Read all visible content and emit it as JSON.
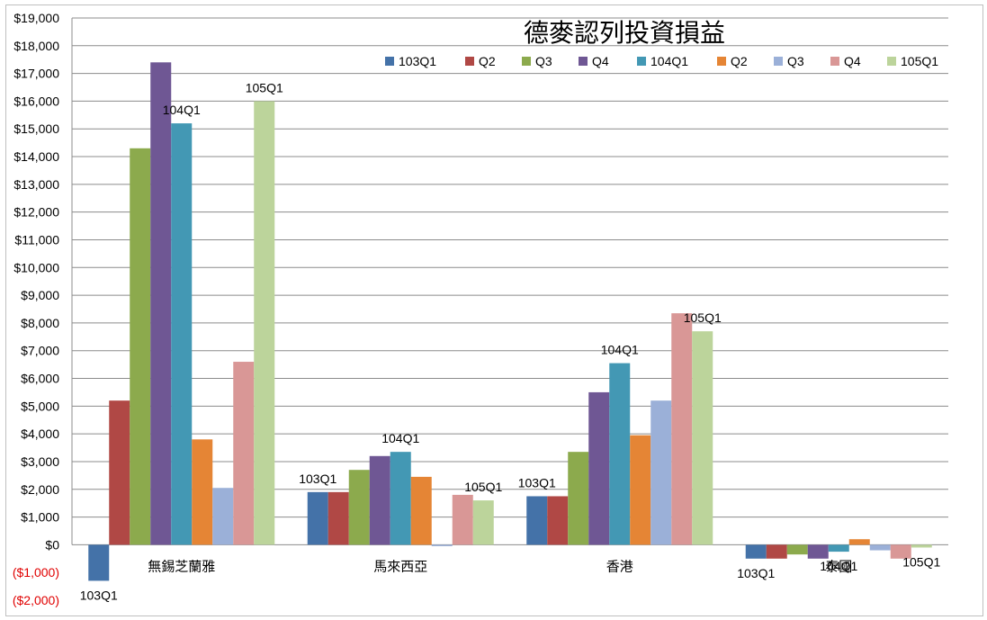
{
  "chart_data": {
    "type": "bar",
    "title": "德麥認列投資損益",
    "xlabel": "",
    "ylabel": "",
    "ylim": [
      -2000,
      19000
    ],
    "ytick_step": 1000,
    "ytick_labels": [
      "($2,000)",
      "($1,000)",
      "$0",
      "$1,000",
      "$2,000",
      "$3,000",
      "$4,000",
      "$5,000",
      "$6,000",
      "$7,000",
      "$8,000",
      "$9,000",
      "$10,000",
      "$11,000",
      "$12,000",
      "$13,000",
      "$14,000",
      "$15,000",
      "$16,000",
      "$17,000",
      "$18,000",
      "$19,000"
    ],
    "grid": true,
    "legend_position": "top-right",
    "categories": [
      "無錫芝蘭雅",
      "馬來西亞",
      "香港",
      "泰國"
    ],
    "series": [
      {
        "name": "103Q1",
        "color": "#4472a8",
        "values": [
          -1300,
          1900,
          1750,
          -500
        ]
      },
      {
        "name": "Q2",
        "color": "#b04845",
        "values": [
          5200,
          1900,
          1750,
          -500
        ]
      },
      {
        "name": "Q3",
        "color": "#8caa4d",
        "values": [
          14300,
          2700,
          3350,
          -350
        ]
      },
      {
        "name": "Q4",
        "color": "#6f5794",
        "values": [
          17400,
          3200,
          5500,
          -500
        ]
      },
      {
        "name": "104Q1",
        "color": "#4398b4",
        "values": [
          15200,
          3350,
          6550,
          -250
        ]
      },
      {
        "name": "Q2",
        "color": "#e58535",
        "values": [
          3800,
          2450,
          3950,
          200
        ]
      },
      {
        "name": "Q3",
        "color": "#9bb0d8",
        "values": [
          2050,
          -50,
          5200,
          -200
        ]
      },
      {
        "name": "Q4",
        "color": "#d99796",
        "values": [
          6600,
          1800,
          8350,
          -500
        ]
      },
      {
        "name": "105Q1",
        "color": "#bcd49b",
        "values": [
          16000,
          1600,
          7700,
          -100
        ]
      }
    ],
    "data_labels": [
      {
        "text": "103Q1",
        "category": 0,
        "series": 0
      },
      {
        "text": "104Q1",
        "category": 0,
        "series": 4
      },
      {
        "text": "105Q1",
        "category": 0,
        "series": 8
      },
      {
        "text": "103Q1",
        "category": 1,
        "series": 0
      },
      {
        "text": "104Q1",
        "category": 1,
        "series": 4
      },
      {
        "text": "105Q1",
        "category": 1,
        "series": 8
      },
      {
        "text": "103Q1",
        "category": 2,
        "series": 0
      },
      {
        "text": "104Q1",
        "category": 2,
        "series": 4
      },
      {
        "text": "105Q1",
        "category": 2,
        "series": 8
      },
      {
        "text": "103Q1",
        "category": 3,
        "series": 0
      },
      {
        "text": "104Q1",
        "category": 3,
        "series": 4
      },
      {
        "text": "105Q1",
        "category": 3,
        "series": 8
      }
    ]
  }
}
